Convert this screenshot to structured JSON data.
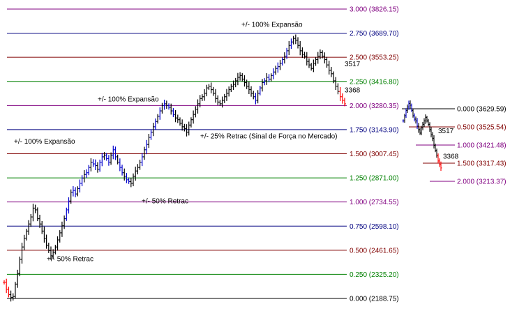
{
  "chart_data": {
    "type": "ohlc",
    "title": "",
    "main": {
      "levels": [
        {
          "ratio": "3.000",
          "price": "3826.15",
          "color": "#800080"
        },
        {
          "ratio": "2.750",
          "price": "3689.70",
          "color": "#000080"
        },
        {
          "ratio": "2.500",
          "price": "3553.25",
          "color": "#800000"
        },
        {
          "ratio": "2.250",
          "price": "3416.80",
          "color": "#008000"
        },
        {
          "ratio": "2.000",
          "price": "3280.35",
          "color": "#800080"
        },
        {
          "ratio": "1.750",
          "price": "3143.90",
          "color": "#000080"
        },
        {
          "ratio": "1.500",
          "price": "3007.45",
          "color": "#800000"
        },
        {
          "ratio": "1.250",
          "price": "2871.00",
          "color": "#008000"
        },
        {
          "ratio": "1.000",
          "price": "2734.55",
          "color": "#800080"
        },
        {
          "ratio": "0.750",
          "price": "2598.10",
          "color": "#000080"
        },
        {
          "ratio": "0.500",
          "price": "2461.65",
          "color": "#800000"
        },
        {
          "ratio": "0.250",
          "price": "2325.20",
          "color": "#008000"
        },
        {
          "ratio": "0.000",
          "price": "2188.75",
          "color": "#000000"
        }
      ],
      "annotations": [
        {
          "text": "+/- 100% Expansão",
          "price": 3740
        },
        {
          "text": "+/- 100% Expansão",
          "price": 3318
        },
        {
          "text": "+/- 100% Expansão",
          "price": 3078
        },
        {
          "text": "+/- 25% Retrac (Sinal de Força no Mercado)",
          "price": 3108
        },
        {
          "text": "+/- 50% Retrac",
          "price": 2742
        },
        {
          "text": "+/- 50% Retrac",
          "price": 2413
        }
      ],
      "price_labels": [
        {
          "text": "3517",
          "price": 3517
        },
        {
          "text": "3368",
          "price": 3368
        }
      ],
      "bar_colors": {
        "black": "#000000",
        "blue": "#0000cc",
        "red": "#ff0000"
      },
      "closes": [
        2280,
        2240,
        2210,
        2195,
        2200,
        2270,
        2330,
        2410,
        2480,
        2530,
        2570,
        2610,
        2650,
        2700,
        2690,
        2640,
        2610,
        2570,
        2530,
        2490,
        2460,
        2430,
        2450,
        2480,
        2520,
        2560,
        2600,
        2640,
        2690,
        2740,
        2790,
        2800,
        2780,
        2810,
        2840,
        2870,
        2890,
        2900,
        2930,
        2960,
        2950,
        2940,
        2920,
        2960,
        2990,
        3000,
        2980,
        2960,
        3000,
        3030,
        2990,
        2960,
        2930,
        2900,
        2880,
        2860,
        2850,
        2840,
        2880,
        2910,
        2930,
        2960,
        2990,
        3030,
        3060,
        3100,
        3130,
        3160,
        3190,
        3220,
        3250,
        3280,
        3290,
        3280,
        3270,
        3250,
        3230,
        3210,
        3200,
        3180,
        3160,
        3150,
        3130,
        3170,
        3200,
        3230,
        3260,
        3290,
        3320,
        3330,
        3350,
        3380,
        3390,
        3370,
        3350,
        3320,
        3300,
        3290,
        3310,
        3330,
        3350,
        3370,
        3390,
        3400,
        3420,
        3440,
        3450,
        3430,
        3410,
        3390,
        3370,
        3350,
        3330,
        3310,
        3350,
        3380,
        3410,
        3420,
        3440,
        3430,
        3450,
        3470,
        3490,
        3500,
        3520,
        3540,
        3560,
        3590,
        3620,
        3640,
        3660,
        3650,
        3620,
        3590,
        3570,
        3560,
        3530,
        3510,
        3490,
        3520,
        3540,
        3560,
        3580,
        3560,
        3540,
        3510,
        3480,
        3460,
        3420,
        3390,
        3360,
        3330,
        3310,
        3290
      ]
    },
    "mini": {
      "levels": [
        {
          "ratio": "0.000",
          "price": "3629.59",
          "color": "#000000"
        },
        {
          "ratio": "0.500",
          "price": "3525.54",
          "color": "#800000"
        },
        {
          "ratio": "1.000",
          "price": "3421.48",
          "color": "#800080"
        },
        {
          "ratio": "1.500",
          "price": "3317.43",
          "color": "#800000"
        },
        {
          "ratio": "2.000",
          "price": "3213.37",
          "color": "#800080"
        }
      ],
      "price_labels": [
        {
          "text": "3517",
          "price": 3504
        },
        {
          "text": "3368",
          "price": 3357
        }
      ],
      "closes": [
        3560,
        3590,
        3620,
        3640,
        3660,
        3650,
        3620,
        3590,
        3570,
        3560,
        3530,
        3510,
        3490,
        3520,
        3540,
        3560,
        3580,
        3560,
        3540,
        3510,
        3480,
        3460,
        3420,
        3390,
        3360,
        3330,
        3310,
        3290
      ]
    }
  }
}
